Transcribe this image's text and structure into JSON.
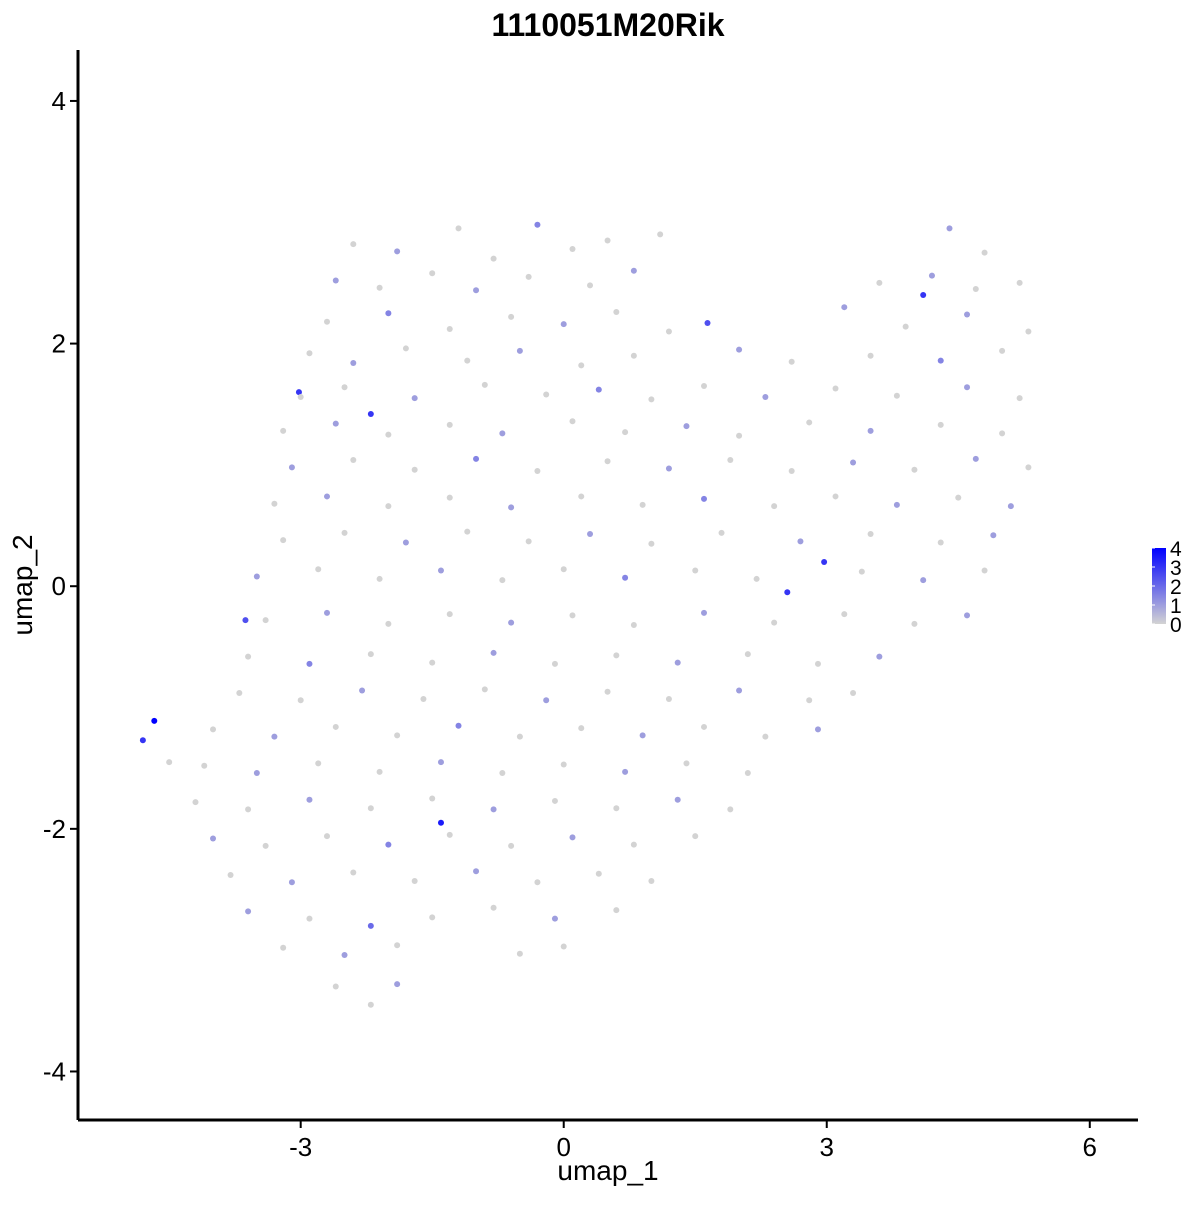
{
  "chart_data": {
    "type": "scatter",
    "title": "1110051M20Rik",
    "xlabel": "umap_1",
    "ylabel": "umap_2",
    "xlim": [
      -5.54,
      6.55
    ],
    "ylim": [
      -4.4,
      4.42
    ],
    "xticks": [
      -3,
      0,
      3,
      6
    ],
    "yticks": [
      -4,
      -2,
      0,
      2,
      4
    ],
    "colorbar": {
      "lim": [
        0,
        4
      ],
      "ticks": [
        0,
        1,
        2,
        3,
        4
      ],
      "low": "#d3d3d3",
      "high": "#0000ff"
    },
    "points": [
      {
        "x": -4.67,
        "y": -1.11,
        "expr": 4
      },
      {
        "x": -4.8,
        "y": -1.27,
        "expr": 3
      },
      {
        "x": -4.5,
        "y": -1.45,
        "expr": 0
      },
      {
        "x": 1.64,
        "y": 2.17,
        "expr": 2.5
      },
      {
        "x": 2.97,
        "y": 0.2,
        "expr": 3
      },
      {
        "x": 2.55,
        "y": -0.05,
        "expr": 3
      },
      {
        "x": -1.4,
        "y": -1.95,
        "expr": 3.5
      },
      {
        "x": -2.2,
        "y": 1.42,
        "expr": 3
      },
      {
        "x": -3.02,
        "y": 1.6,
        "expr": 3
      },
      {
        "x": 4.1,
        "y": 2.4,
        "expr": 3
      },
      {
        "x": -3.63,
        "y": -0.28,
        "expr": 2.5
      },
      {
        "x": -2.4,
        "y": 2.82,
        "expr": 0
      },
      {
        "x": -1.9,
        "y": 2.76,
        "expr": 1
      },
      {
        "x": -1.2,
        "y": 2.95,
        "expr": 0
      },
      {
        "x": -0.8,
        "y": 2.7,
        "expr": 0
      },
      {
        "x": -0.3,
        "y": 2.98,
        "expr": 1.5
      },
      {
        "x": 0.1,
        "y": 2.78,
        "expr": 0
      },
      {
        "x": 0.5,
        "y": 2.85,
        "expr": 0
      },
      {
        "x": 1.1,
        "y": 2.9,
        "expr": 0
      },
      {
        "x": 4.4,
        "y": 2.95,
        "expr": 1
      },
      {
        "x": 4.8,
        "y": 2.75,
        "expr": 0
      },
      {
        "x": -2.6,
        "y": 2.52,
        "expr": 1
      },
      {
        "x": -2.1,
        "y": 2.46,
        "expr": 0
      },
      {
        "x": -1.5,
        "y": 2.58,
        "expr": 0
      },
      {
        "x": -1.0,
        "y": 2.44,
        "expr": 1
      },
      {
        "x": -0.4,
        "y": 2.55,
        "expr": 0
      },
      {
        "x": 0.3,
        "y": 2.48,
        "expr": 0
      },
      {
        "x": 0.8,
        "y": 2.6,
        "expr": 1
      },
      {
        "x": 3.6,
        "y": 2.5,
        "expr": 0
      },
      {
        "x": 4.2,
        "y": 2.56,
        "expr": 1
      },
      {
        "x": 4.7,
        "y": 2.45,
        "expr": 0
      },
      {
        "x": 5.2,
        "y": 2.5,
        "expr": 0
      },
      {
        "x": -2.7,
        "y": 2.18,
        "expr": 0
      },
      {
        "x": -2.0,
        "y": 2.25,
        "expr": 1.5
      },
      {
        "x": -1.3,
        "y": 2.12,
        "expr": 0
      },
      {
        "x": -0.6,
        "y": 2.22,
        "expr": 0
      },
      {
        "x": 0.0,
        "y": 2.16,
        "expr": 1
      },
      {
        "x": 0.6,
        "y": 2.26,
        "expr": 0
      },
      {
        "x": 1.2,
        "y": 2.1,
        "expr": 0
      },
      {
        "x": 3.2,
        "y": 2.3,
        "expr": 1
      },
      {
        "x": 3.9,
        "y": 2.14,
        "expr": 0
      },
      {
        "x": 4.6,
        "y": 2.24,
        "expr": 1
      },
      {
        "x": 5.3,
        "y": 2.1,
        "expr": 0
      },
      {
        "x": -2.9,
        "y": 1.92,
        "expr": 0
      },
      {
        "x": -2.4,
        "y": 1.84,
        "expr": 1
      },
      {
        "x": -1.8,
        "y": 1.96,
        "expr": 0
      },
      {
        "x": -1.1,
        "y": 1.86,
        "expr": 0
      },
      {
        "x": -0.5,
        "y": 1.94,
        "expr": 1
      },
      {
        "x": 0.2,
        "y": 1.82,
        "expr": 0
      },
      {
        "x": 0.8,
        "y": 1.9,
        "expr": 0
      },
      {
        "x": 2.0,
        "y": 1.95,
        "expr": 1
      },
      {
        "x": 2.6,
        "y": 1.85,
        "expr": 0
      },
      {
        "x": 3.5,
        "y": 1.9,
        "expr": 0
      },
      {
        "x": 4.3,
        "y": 1.86,
        "expr": 1.5
      },
      {
        "x": 5.0,
        "y": 1.94,
        "expr": 0
      },
      {
        "x": -3.0,
        "y": 1.56,
        "expr": 0
      },
      {
        "x": -2.5,
        "y": 1.64,
        "expr": 0
      },
      {
        "x": -1.7,
        "y": 1.55,
        "expr": 1
      },
      {
        "x": -0.9,
        "y": 1.66,
        "expr": 0
      },
      {
        "x": -0.2,
        "y": 1.58,
        "expr": 0
      },
      {
        "x": 0.4,
        "y": 1.62,
        "expr": 1.5
      },
      {
        "x": 1.0,
        "y": 1.54,
        "expr": 0
      },
      {
        "x": 1.6,
        "y": 1.65,
        "expr": 0
      },
      {
        "x": 2.3,
        "y": 1.56,
        "expr": 1
      },
      {
        "x": 3.1,
        "y": 1.63,
        "expr": 0
      },
      {
        "x": 3.8,
        "y": 1.57,
        "expr": 0
      },
      {
        "x": 4.6,
        "y": 1.64,
        "expr": 1
      },
      {
        "x": 5.2,
        "y": 1.55,
        "expr": 0
      },
      {
        "x": -3.2,
        "y": 1.28,
        "expr": 0
      },
      {
        "x": -2.6,
        "y": 1.34,
        "expr": 1
      },
      {
        "x": -2.0,
        "y": 1.25,
        "expr": 0
      },
      {
        "x": -1.3,
        "y": 1.33,
        "expr": 0
      },
      {
        "x": -0.7,
        "y": 1.26,
        "expr": 1
      },
      {
        "x": 0.1,
        "y": 1.36,
        "expr": 0
      },
      {
        "x": 0.7,
        "y": 1.27,
        "expr": 0
      },
      {
        "x": 1.4,
        "y": 1.32,
        "expr": 1
      },
      {
        "x": 2.0,
        "y": 1.24,
        "expr": 0
      },
      {
        "x": 2.8,
        "y": 1.35,
        "expr": 0
      },
      {
        "x": 3.5,
        "y": 1.28,
        "expr": 1
      },
      {
        "x": 4.3,
        "y": 1.33,
        "expr": 0
      },
      {
        "x": 5.0,
        "y": 1.26,
        "expr": 0
      },
      {
        "x": -3.1,
        "y": 0.98,
        "expr": 1
      },
      {
        "x": -2.4,
        "y": 1.04,
        "expr": 0
      },
      {
        "x": -1.7,
        "y": 0.96,
        "expr": 0
      },
      {
        "x": -1.0,
        "y": 1.05,
        "expr": 1.5
      },
      {
        "x": -0.3,
        "y": 0.95,
        "expr": 0
      },
      {
        "x": 0.5,
        "y": 1.03,
        "expr": 0
      },
      {
        "x": 1.2,
        "y": 0.97,
        "expr": 1
      },
      {
        "x": 1.9,
        "y": 1.04,
        "expr": 0
      },
      {
        "x": 2.6,
        "y": 0.95,
        "expr": 0
      },
      {
        "x": 3.3,
        "y": 1.02,
        "expr": 1
      },
      {
        "x": 4.0,
        "y": 0.96,
        "expr": 0
      },
      {
        "x": 4.7,
        "y": 1.05,
        "expr": 1
      },
      {
        "x": 5.3,
        "y": 0.98,
        "expr": 0
      },
      {
        "x": -3.3,
        "y": 0.68,
        "expr": 0
      },
      {
        "x": -2.7,
        "y": 0.74,
        "expr": 1
      },
      {
        "x": -2.0,
        "y": 0.66,
        "expr": 0
      },
      {
        "x": -1.3,
        "y": 0.73,
        "expr": 0
      },
      {
        "x": -0.6,
        "y": 0.65,
        "expr": 1
      },
      {
        "x": 0.2,
        "y": 0.74,
        "expr": 0
      },
      {
        "x": 0.9,
        "y": 0.67,
        "expr": 0
      },
      {
        "x": 1.6,
        "y": 0.72,
        "expr": 1.5
      },
      {
        "x": 2.4,
        "y": 0.66,
        "expr": 0
      },
      {
        "x": 3.1,
        "y": 0.74,
        "expr": 0
      },
      {
        "x": 3.8,
        "y": 0.67,
        "expr": 1
      },
      {
        "x": 4.5,
        "y": 0.73,
        "expr": 0
      },
      {
        "x": 5.1,
        "y": 0.66,
        "expr": 1
      },
      {
        "x": -3.2,
        "y": 0.38,
        "expr": 0
      },
      {
        "x": -2.5,
        "y": 0.44,
        "expr": 0
      },
      {
        "x": -1.8,
        "y": 0.36,
        "expr": 1
      },
      {
        "x": -1.1,
        "y": 0.45,
        "expr": 0
      },
      {
        "x": -0.4,
        "y": 0.37,
        "expr": 0
      },
      {
        "x": 0.3,
        "y": 0.43,
        "expr": 1
      },
      {
        "x": 1.0,
        "y": 0.35,
        "expr": 0
      },
      {
        "x": 1.8,
        "y": 0.44,
        "expr": 0
      },
      {
        "x": 2.7,
        "y": 0.37,
        "expr": 1
      },
      {
        "x": 3.5,
        "y": 0.43,
        "expr": 0
      },
      {
        "x": 4.3,
        "y": 0.36,
        "expr": 0
      },
      {
        "x": 4.9,
        "y": 0.42,
        "expr": 1
      },
      {
        "x": -3.5,
        "y": 0.08,
        "expr": 1
      },
      {
        "x": -2.8,
        "y": 0.14,
        "expr": 0
      },
      {
        "x": -2.1,
        "y": 0.06,
        "expr": 0
      },
      {
        "x": -1.4,
        "y": 0.13,
        "expr": 1
      },
      {
        "x": -0.7,
        "y": 0.05,
        "expr": 0
      },
      {
        "x": 0.0,
        "y": 0.14,
        "expr": 0
      },
      {
        "x": 0.7,
        "y": 0.07,
        "expr": 1.5
      },
      {
        "x": 1.5,
        "y": 0.13,
        "expr": 0
      },
      {
        "x": 2.2,
        "y": 0.06,
        "expr": 0
      },
      {
        "x": 3.4,
        "y": 0.12,
        "expr": 0
      },
      {
        "x": 4.1,
        "y": 0.05,
        "expr": 1
      },
      {
        "x": 4.8,
        "y": 0.13,
        "expr": 0
      },
      {
        "x": -3.4,
        "y": -0.28,
        "expr": 0
      },
      {
        "x": -2.7,
        "y": -0.22,
        "expr": 1
      },
      {
        "x": -2.0,
        "y": -0.31,
        "expr": 0
      },
      {
        "x": -1.3,
        "y": -0.23,
        "expr": 0
      },
      {
        "x": -0.6,
        "y": -0.3,
        "expr": 1
      },
      {
        "x": 0.1,
        "y": -0.24,
        "expr": 0
      },
      {
        "x": 0.8,
        "y": -0.32,
        "expr": 0
      },
      {
        "x": 1.6,
        "y": -0.22,
        "expr": 1
      },
      {
        "x": 2.4,
        "y": -0.3,
        "expr": 0
      },
      {
        "x": 3.2,
        "y": -0.23,
        "expr": 0
      },
      {
        "x": 4.0,
        "y": -0.31,
        "expr": 0
      },
      {
        "x": 4.6,
        "y": -0.24,
        "expr": 1
      },
      {
        "x": -3.6,
        "y": -0.58,
        "expr": 0
      },
      {
        "x": -2.9,
        "y": -0.64,
        "expr": 1.5
      },
      {
        "x": -2.2,
        "y": -0.56,
        "expr": 0
      },
      {
        "x": -1.5,
        "y": -0.63,
        "expr": 0
      },
      {
        "x": -0.8,
        "y": -0.55,
        "expr": 1
      },
      {
        "x": -0.1,
        "y": -0.64,
        "expr": 0
      },
      {
        "x": 0.6,
        "y": -0.57,
        "expr": 0
      },
      {
        "x": 1.3,
        "y": -0.63,
        "expr": 1
      },
      {
        "x": 2.1,
        "y": -0.56,
        "expr": 0
      },
      {
        "x": 2.9,
        "y": -0.64,
        "expr": 0
      },
      {
        "x": 3.6,
        "y": -0.58,
        "expr": 1
      },
      {
        "x": -3.7,
        "y": -0.88,
        "expr": 0
      },
      {
        "x": -3.0,
        "y": -0.94,
        "expr": 0
      },
      {
        "x": -2.3,
        "y": -0.86,
        "expr": 1
      },
      {
        "x": -1.6,
        "y": -0.93,
        "expr": 0
      },
      {
        "x": -0.9,
        "y": -0.85,
        "expr": 0
      },
      {
        "x": -0.2,
        "y": -0.94,
        "expr": 1
      },
      {
        "x": 0.5,
        "y": -0.87,
        "expr": 0
      },
      {
        "x": 1.2,
        "y": -0.93,
        "expr": 0
      },
      {
        "x": 2.0,
        "y": -0.86,
        "expr": 1
      },
      {
        "x": 2.8,
        "y": -0.94,
        "expr": 0
      },
      {
        "x": 3.3,
        "y": -0.88,
        "expr": 0
      },
      {
        "x": -4.0,
        "y": -1.18,
        "expr": 0
      },
      {
        "x": -3.3,
        "y": -1.24,
        "expr": 1
      },
      {
        "x": -2.6,
        "y": -1.16,
        "expr": 0
      },
      {
        "x": -1.9,
        "y": -1.23,
        "expr": 0
      },
      {
        "x": -1.2,
        "y": -1.15,
        "expr": 1.5
      },
      {
        "x": -0.5,
        "y": -1.24,
        "expr": 0
      },
      {
        "x": 0.2,
        "y": -1.17,
        "expr": 0
      },
      {
        "x": 0.9,
        "y": -1.23,
        "expr": 1
      },
      {
        "x": 1.6,
        "y": -1.16,
        "expr": 0
      },
      {
        "x": 2.3,
        "y": -1.24,
        "expr": 0
      },
      {
        "x": 2.9,
        "y": -1.18,
        "expr": 1
      },
      {
        "x": -4.1,
        "y": -1.48,
        "expr": 0
      },
      {
        "x": -3.5,
        "y": -1.54,
        "expr": 1
      },
      {
        "x": -2.8,
        "y": -1.46,
        "expr": 0
      },
      {
        "x": -2.1,
        "y": -1.53,
        "expr": 0
      },
      {
        "x": -1.4,
        "y": -1.45,
        "expr": 1
      },
      {
        "x": -0.7,
        "y": -1.54,
        "expr": 0
      },
      {
        "x": 0.0,
        "y": -1.47,
        "expr": 0
      },
      {
        "x": 0.7,
        "y": -1.53,
        "expr": 1
      },
      {
        "x": 1.4,
        "y": -1.46,
        "expr": 0
      },
      {
        "x": 2.1,
        "y": -1.54,
        "expr": 0
      },
      {
        "x": -4.2,
        "y": -1.78,
        "expr": 0
      },
      {
        "x": -3.6,
        "y": -1.84,
        "expr": 0
      },
      {
        "x": -2.9,
        "y": -1.76,
        "expr": 1
      },
      {
        "x": -2.2,
        "y": -1.83,
        "expr": 0
      },
      {
        "x": -1.5,
        "y": -1.75,
        "expr": 0
      },
      {
        "x": -0.8,
        "y": -1.84,
        "expr": 1
      },
      {
        "x": -0.1,
        "y": -1.77,
        "expr": 0
      },
      {
        "x": 0.6,
        "y": -1.83,
        "expr": 0
      },
      {
        "x": 1.3,
        "y": -1.76,
        "expr": 1
      },
      {
        "x": 1.9,
        "y": -1.84,
        "expr": 0
      },
      {
        "x": -4.0,
        "y": -2.08,
        "expr": 1
      },
      {
        "x": -3.4,
        "y": -2.14,
        "expr": 0
      },
      {
        "x": -2.7,
        "y": -2.06,
        "expr": 0
      },
      {
        "x": -2.0,
        "y": -2.13,
        "expr": 1.5
      },
      {
        "x": -1.3,
        "y": -2.05,
        "expr": 0
      },
      {
        "x": -0.6,
        "y": -2.14,
        "expr": 0
      },
      {
        "x": 0.1,
        "y": -2.07,
        "expr": 1
      },
      {
        "x": 0.8,
        "y": -2.13,
        "expr": 0
      },
      {
        "x": 1.5,
        "y": -2.06,
        "expr": 0
      },
      {
        "x": -3.8,
        "y": -2.38,
        "expr": 0
      },
      {
        "x": -3.1,
        "y": -2.44,
        "expr": 1
      },
      {
        "x": -2.4,
        "y": -2.36,
        "expr": 0
      },
      {
        "x": -1.7,
        "y": -2.43,
        "expr": 0
      },
      {
        "x": -1.0,
        "y": -2.35,
        "expr": 1
      },
      {
        "x": -0.3,
        "y": -2.44,
        "expr": 0
      },
      {
        "x": 0.4,
        "y": -2.37,
        "expr": 0
      },
      {
        "x": 1.0,
        "y": -2.43,
        "expr": 0
      },
      {
        "x": -3.6,
        "y": -2.68,
        "expr": 1
      },
      {
        "x": -2.9,
        "y": -2.74,
        "expr": 0
      },
      {
        "x": -2.2,
        "y": -2.8,
        "expr": 2
      },
      {
        "x": -1.5,
        "y": -2.73,
        "expr": 0
      },
      {
        "x": -0.8,
        "y": -2.65,
        "expr": 0
      },
      {
        "x": -0.1,
        "y": -2.74,
        "expr": 1
      },
      {
        "x": 0.6,
        "y": -2.67,
        "expr": 0
      },
      {
        "x": -3.2,
        "y": -2.98,
        "expr": 0
      },
      {
        "x": -2.5,
        "y": -3.04,
        "expr": 1
      },
      {
        "x": -1.9,
        "y": -2.96,
        "expr": 0
      },
      {
        "x": -0.5,
        "y": -3.03,
        "expr": 0
      },
      {
        "x": 0.0,
        "y": -2.97,
        "expr": 0
      },
      {
        "x": -2.6,
        "y": -3.3,
        "expr": 0
      },
      {
        "x": -2.2,
        "y": -3.45,
        "expr": 0
      },
      {
        "x": -1.9,
        "y": -3.28,
        "expr": 1
      }
    ]
  }
}
